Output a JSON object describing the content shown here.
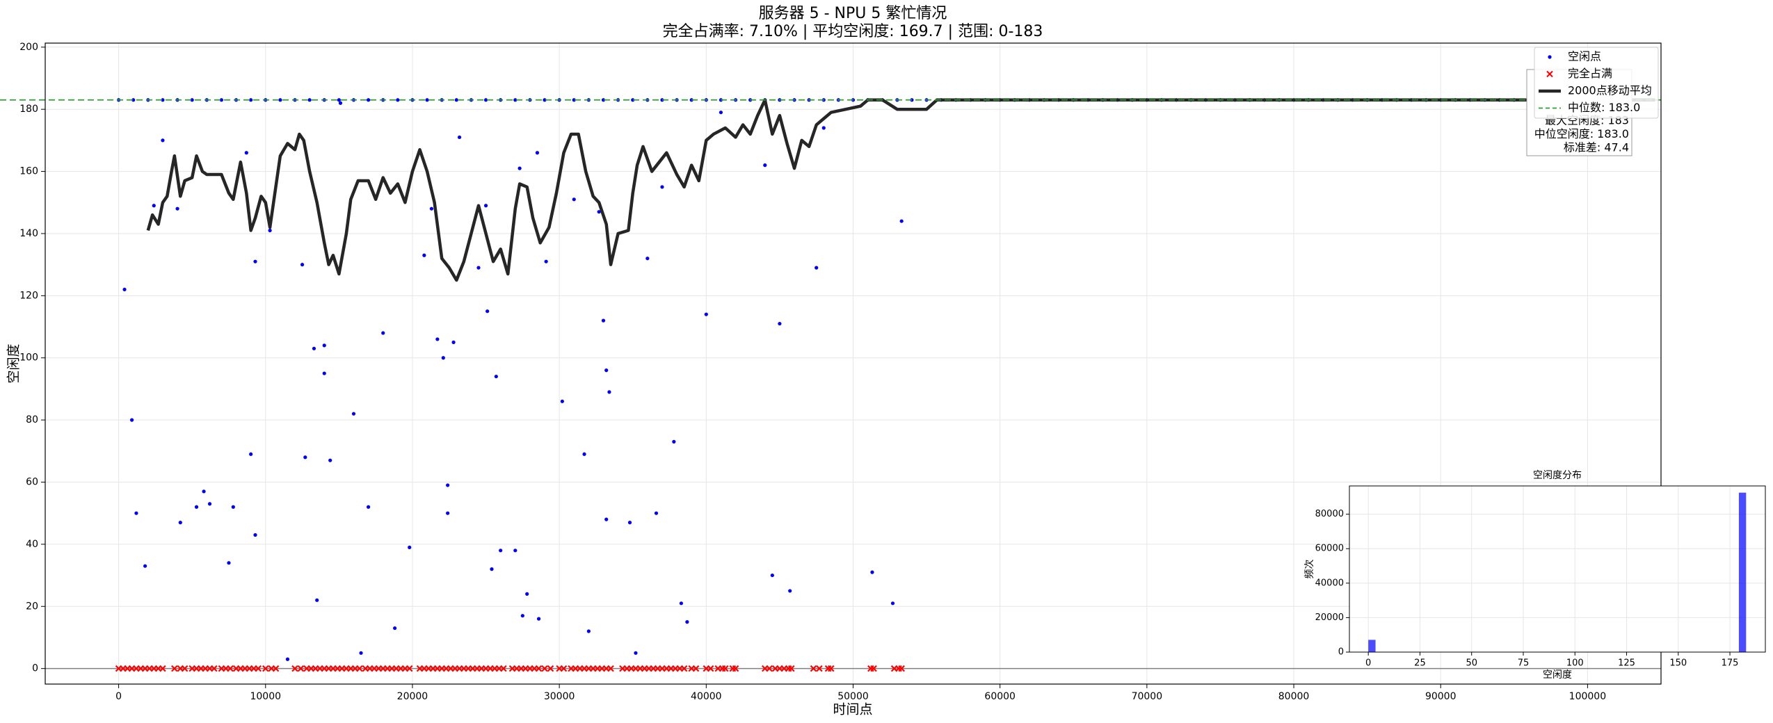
{
  "chart_data": [
    {
      "type": "scatter",
      "title": "服务器 5 - NPU 5 繁忙情况",
      "subtitle": "完全占满率: 7.10% | 平均空闲度: 169.7 | 范围: 0-183",
      "x_label": "时间点",
      "y_label": "空闲度",
      "xlim": [
        -5000,
        105000
      ],
      "ylim": [
        -5,
        201.3
      ],
      "xticks": [
        0,
        10000,
        20000,
        30000,
        40000,
        50000,
        60000,
        70000,
        80000,
        90000,
        100000
      ],
      "yticks": [
        0,
        20,
        40,
        60,
        80,
        100,
        120,
        140,
        160,
        180,
        200
      ],
      "grid": true,
      "legend": "upper right",
      "zero_line": {
        "value": 0,
        "color": "#808080"
      },
      "median": {
        "label": "中位数: 183.0",
        "value": 183,
        "color": "#2ca02c"
      },
      "stats": [
        "最大空闲度: 183",
        "中位空闲度: 183.0",
        "标准差: 47.4"
      ],
      "series": [
        {
          "name": "空闲点",
          "type": "scatter",
          "color": "#0000ff",
          "x": [
            0,
            1000,
            2000,
            3000,
            4000,
            5000,
            6000,
            7000,
            8000,
            9000,
            10000,
            11000,
            12000,
            13000,
            14000,
            15000,
            16000,
            17000,
            18000,
            19000,
            20000,
            21000,
            22000,
            23000,
            24000,
            25000,
            26000,
            27000,
            28000,
            29000,
            30000,
            31000,
            32000,
            33000,
            34000,
            35000,
            36000,
            37000,
            38000,
            39000,
            40000,
            41000,
            42000,
            43000,
            44000,
            45000,
            46000,
            47000,
            48000,
            49000,
            50000,
            51000,
            52000,
            53000,
            54000,
            55000,
            56000,
            57000,
            58000,
            59000,
            60000,
            61000,
            62000,
            63000,
            64000,
            65000,
            66000,
            67000,
            68000,
            69000,
            70000,
            71000,
            72000,
            73000,
            74000,
            75000,
            76000,
            77000,
            78000,
            79000,
            80000,
            81000,
            82000,
            83000,
            84000,
            85000,
            86000,
            87000,
            88000,
            89000,
            90000,
            91000,
            92000,
            93000,
            94000,
            95000,
            96000,
            97000,
            98000,
            99000,
            100000,
            400,
            900,
            1200,
            1800,
            2400,
            3000,
            4000,
            4200,
            5300,
            5800,
            6200,
            7500,
            7800,
            8700,
            9000,
            9300,
            9300,
            10300,
            11500,
            12500,
            12700,
            13300,
            13500,
            14000,
            14000,
            14400,
            15100,
            16000,
            16500,
            17000,
            18000,
            18800,
            19800,
            20800,
            21300,
            21700,
            22100,
            22400,
            22400,
            22800,
            23200,
            24500,
            25000,
            25100,
            25400,
            25700,
            26000,
            27000,
            27300,
            27500,
            27800,
            28500,
            28600,
            29100,
            30200,
            31000,
            31700,
            32000,
            32700,
            33000,
            33200,
            33200,
            33400,
            34800,
            35200,
            36000,
            36600,
            37000,
            37800,
            38300,
            38700,
            40000,
            41000,
            44000,
            44500,
            45000,
            45700,
            47500,
            48000,
            51300,
            52700,
            53300
          ],
          "values": [
            183,
            183,
            183,
            183,
            183,
            183,
            183,
            183,
            183,
            183,
            183,
            183,
            183,
            183,
            183,
            183,
            183,
            183,
            183,
            183,
            183,
            183,
            183,
            183,
            183,
            183,
            183,
            183,
            183,
            183,
            183,
            183,
            183,
            183,
            183,
            183,
            183,
            183,
            183,
            183,
            183,
            183,
            183,
            183,
            183,
            183,
            183,
            183,
            183,
            183,
            183,
            183,
            183,
            183,
            183,
            183,
            183,
            183,
            183,
            183,
            183,
            183,
            183,
            183,
            183,
            183,
            183,
            183,
            183,
            183,
            183,
            183,
            183,
            183,
            183,
            183,
            183,
            183,
            183,
            183,
            183,
            183,
            183,
            183,
            183,
            183,
            183,
            183,
            183,
            183,
            183,
            183,
            183,
            183,
            183,
            183,
            183,
            183,
            183,
            183,
            183,
            122,
            80,
            50,
            33,
            149,
            170,
            148,
            47,
            52,
            57,
            53,
            34,
            52,
            166,
            69,
            131,
            43,
            141,
            3,
            130,
            68,
            103,
            22,
            104,
            95,
            67,
            182,
            82,
            5,
            52,
            108,
            13,
            39,
            133,
            148,
            106,
            100,
            59,
            50,
            105,
            171,
            129,
            149,
            115,
            32,
            94,
            38,
            38,
            161,
            17,
            24,
            166,
            16,
            131,
            86,
            151,
            69,
            12,
            147,
            112,
            96,
            48,
            89,
            47,
            5,
            132,
            50,
            155,
            73,
            21,
            15,
            114,
            179,
            162,
            30,
            111,
            25,
            129,
            174,
            31,
            21,
            144
          ]
        },
        {
          "name": "完全占满",
          "type": "cross",
          "color": "#ff0000",
          "x": [
            0,
            300,
            600,
            900,
            1200,
            1500,
            1800,
            2100,
            2400,
            2700,
            3000,
            3800,
            4200,
            4500,
            5000,
            5300,
            5600,
            5900,
            6200,
            6500,
            7000,
            7300,
            7600,
            8000,
            8300,
            8600,
            8900,
            9200,
            9500,
            10000,
            10400,
            10700,
            12000,
            12400,
            12800,
            13100,
            13400,
            13700,
            14000,
            14300,
            14600,
            14900,
            15200,
            15500,
            15800,
            16100,
            16400,
            16800,
            17100,
            17400,
            17700,
            18000,
            18300,
            18600,
            18900,
            19200,
            19500,
            19800,
            20500,
            20800,
            21100,
            21400,
            21700,
            22000,
            22300,
            22600,
            22900,
            23200,
            23500,
            23800,
            24100,
            24400,
            24700,
            25000,
            25300,
            25600,
            25900,
            26200,
            26800,
            27100,
            27400,
            27700,
            28000,
            28300,
            28600,
            29000,
            29400,
            30000,
            30300,
            30800,
            31100,
            31400,
            31700,
            32000,
            32300,
            32600,
            32900,
            33200,
            33500,
            34300,
            34600,
            34900,
            35200,
            35500,
            35800,
            36100,
            36400,
            36700,
            37000,
            37300,
            37600,
            37900,
            38200,
            38500,
            39000,
            39300,
            40000,
            40300,
            40800,
            41100,
            41300,
            41800,
            42000,
            44000,
            44300,
            44700,
            45000,
            45300,
            45600,
            45800,
            47300,
            47700,
            48300,
            48500,
            51200,
            51400,
            52800,
            53100,
            53300
          ],
          "values": [
            0,
            0,
            0,
            0,
            0,
            0,
            0,
            0,
            0,
            0,
            0,
            0,
            0,
            0,
            0,
            0,
            0,
            0,
            0,
            0,
            0,
            0,
            0,
            0,
            0,
            0,
            0,
            0,
            0,
            0,
            0,
            0,
            0,
            0,
            0,
            0,
            0,
            0,
            0,
            0,
            0,
            0,
            0,
            0,
            0,
            0,
            0,
            0,
            0,
            0,
            0,
            0,
            0,
            0,
            0,
            0,
            0,
            0,
            0,
            0,
            0,
            0,
            0,
            0,
            0,
            0,
            0,
            0,
            0,
            0,
            0,
            0,
            0,
            0,
            0,
            0,
            0,
            0,
            0,
            0,
            0,
            0,
            0,
            0,
            0,
            0,
            0,
            0,
            0,
            0,
            0,
            0,
            0,
            0,
            0,
            0,
            0,
            0,
            0,
            0,
            0,
            0,
            0,
            0,
            0,
            0,
            0,
            0,
            0,
            0,
            0,
            0,
            0,
            0,
            0,
            0,
            0,
            0,
            0,
            0,
            0,
            0,
            0,
            0,
            0,
            0,
            0,
            0,
            0,
            0,
            0,
            0,
            0,
            0,
            0,
            0,
            0,
            0,
            0
          ]
        },
        {
          "name": "2000点移动平均",
          "type": "line",
          "color": "#262626",
          "x": [
            2000,
            2300,
            2700,
            3000,
            3300,
            3600,
            3800,
            4200,
            4500,
            5000,
            5300,
            5700,
            6000,
            7000,
            7500,
            7800,
            8300,
            8700,
            9000,
            9300,
            9700,
            10000,
            10300,
            11000,
            11500,
            12000,
            12300,
            12600,
            13000,
            13500,
            14000,
            14300,
            14600,
            15000,
            15500,
            15800,
            16300,
            17000,
            17500,
            18000,
            18500,
            19000,
            19500,
            20000,
            20500,
            21000,
            21500,
            22000,
            22500,
            23000,
            23500,
            24000,
            24500,
            25000,
            25500,
            26000,
            26500,
            27000,
            27300,
            27800,
            28200,
            28700,
            29300,
            29800,
            30300,
            30800,
            31300,
            31800,
            32300,
            32700,
            33200,
            33500,
            34000,
            34700,
            35000,
            35300,
            35700,
            36300,
            36800,
            37300,
            38000,
            38500,
            39000,
            39500,
            40000,
            40500,
            41300,
            42000,
            42500,
            43000,
            43500,
            44000,
            44500,
            45000,
            45500,
            46000,
            46500,
            47000,
            47500,
            48000,
            48500,
            49500,
            50500,
            51000,
            52000,
            53000,
            55000,
            55700,
            104600
          ],
          "values": [
            141,
            146,
            143,
            150,
            152,
            160,
            165,
            152,
            157,
            158,
            165,
            160,
            159,
            159,
            153,
            151,
            163,
            153,
            141,
            145,
            152,
            150,
            142,
            165,
            169,
            167,
            172,
            170,
            160,
            150,
            137,
            130,
            133,
            127,
            140,
            151,
            157,
            157,
            151,
            158,
            153,
            156,
            150,
            160,
            167,
            160,
            150,
            132,
            129,
            125,
            131,
            140,
            149,
            140,
            131,
            135,
            127,
            148,
            156,
            155,
            145,
            137,
            142,
            153,
            166,
            172,
            172,
            160,
            152,
            150,
            143,
            130,
            140,
            141,
            153,
            162,
            168,
            160,
            163,
            166,
            159,
            155,
            162,
            157,
            170,
            172,
            174,
            171,
            175,
            172,
            178,
            183,
            172,
            178,
            169,
            161,
            170,
            168,
            175,
            177,
            179,
            180,
            181,
            183,
            183,
            180,
            180,
            183,
            183
          ]
        }
      ]
    },
    {
      "type": "histogram",
      "title": "空闲度分布",
      "x_label": "空闲度",
      "y_label": "频次",
      "color": "#0000ff",
      "grid": true,
      "xlim": [
        -9.15,
        192.15
      ],
      "ylim": [
        0,
        96400
      ],
      "xticks": [
        0,
        25,
        50,
        75,
        100,
        125,
        150,
        175
      ],
      "yticks": [
        0,
        20000,
        40000,
        60000,
        80000
      ],
      "bins": [
        0,
        3.66,
        7.32,
        10.98,
        14.64,
        18.3,
        21.96,
        25.62,
        29.28,
        32.94,
        36.6,
        40.26,
        43.92,
        47.58,
        51.24,
        54.9,
        58.56,
        62.22,
        65.88,
        69.54,
        73.2,
        76.86,
        80.52,
        84.18,
        87.84,
        91.5,
        95.16,
        98.82,
        102.48,
        106.14,
        109.8,
        113.46,
        117.12,
        120.78,
        124.44,
        128.1,
        131.76,
        135.42,
        139.08,
        142.74,
        146.4,
        150.06,
        153.72,
        157.38,
        161.04,
        164.7,
        168.36,
        172.02,
        175.68,
        179.34,
        183
      ],
      "values": [
        7101,
        2,
        0,
        2,
        3,
        2,
        3,
        0,
        3,
        2,
        3,
        1,
        2,
        4,
        4,
        1,
        1,
        0,
        4,
        1,
        0,
        1,
        1,
        1,
        1,
        2,
        1,
        1,
        3,
        2,
        2,
        2,
        0,
        1,
        0,
        5,
        2,
        0,
        1,
        1,
        5,
        1,
        1,
        0,
        2,
        2,
        2,
        1,
        1,
        92500
      ]
    }
  ]
}
